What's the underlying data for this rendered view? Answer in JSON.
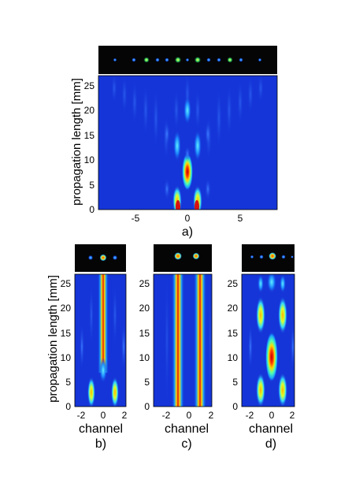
{
  "figure": {
    "ylabel": "propagation length [mm]",
    "xlabel_channel": "channel",
    "panels": [
      {
        "id": "a",
        "label": "a)"
      },
      {
        "id": "b",
        "label": "b)"
      },
      {
        "id": "c",
        "label": "c)"
      },
      {
        "id": "d",
        "label": "d)"
      }
    ]
  },
  "chart_data": [
    {
      "type": "heatmap",
      "panel": "a)",
      "xlabel": "",
      "ylabel": "propagation length [mm]",
      "xlim": [
        -8.5,
        8.5
      ],
      "ylim": [
        0,
        27
      ],
      "xticks": [
        -5,
        0,
        5
      ],
      "yticks": [
        0,
        5,
        10,
        15,
        20,
        25
      ],
      "colormap": "jet",
      "inset": "camera image of output spots",
      "peaks": [
        {
          "x": 0,
          "y": 7,
          "intensity": 1.0
        },
        {
          "x": -1,
          "y": 2,
          "intensity": 0.85
        },
        {
          "x": 1,
          "y": 2,
          "intensity": 0.85
        },
        {
          "x": -1,
          "y": 13,
          "intensity": 0.55
        },
        {
          "x": 1,
          "y": 13,
          "intensity": 0.55
        },
        {
          "x": 0,
          "y": 19,
          "intensity": 0.5
        },
        {
          "x": -2,
          "y": 17,
          "intensity": 0.4
        },
        {
          "x": 2,
          "y": 17,
          "intensity": 0.4
        }
      ]
    },
    {
      "type": "heatmap",
      "panel": "b)",
      "xlabel": "channel",
      "ylabel": "propagation length [mm]",
      "xlim": [
        -2.5,
        2.5
      ],
      "ylim": [
        0,
        27
      ],
      "xticks": [
        -2,
        0,
        2
      ],
      "yticks": [
        0,
        5,
        10,
        15,
        20,
        25
      ],
      "colormap": "jet",
      "peaks": [
        {
          "x": 0,
          "y": 18,
          "intensity": 1.0
        },
        {
          "x": -1,
          "y": 2.5,
          "intensity": 0.6
        },
        {
          "x": 1,
          "y": 2.5,
          "intensity": 0.6
        }
      ]
    },
    {
      "type": "heatmap",
      "panel": "c)",
      "xlabel": "channel",
      "ylabel": "",
      "xlim": [
        -2.5,
        2.5
      ],
      "ylim": [
        0,
        27
      ],
      "xticks": [
        -2,
        0,
        2
      ],
      "yticks": [
        0,
        5,
        10,
        15,
        20,
        25
      ],
      "colormap": "jet",
      "peaks": [
        {
          "x": -1,
          "y": 13,
          "intensity": 0.9
        },
        {
          "x": 1,
          "y": 13,
          "intensity": 0.9
        }
      ]
    },
    {
      "type": "heatmap",
      "panel": "d)",
      "xlabel": "channel",
      "ylabel": "",
      "xlim": [
        -2.5,
        2.5
      ],
      "ylim": [
        0,
        27
      ],
      "xticks": [
        -2,
        0,
        2
      ],
      "yticks": [
        0,
        5,
        10,
        15,
        20,
        25
      ],
      "colormap": "jet",
      "peaks": [
        {
          "x": 0,
          "y": 10,
          "intensity": 1.0
        },
        {
          "x": -1,
          "y": 2.5,
          "intensity": 0.6
        },
        {
          "x": 1,
          "y": 2.5,
          "intensity": 0.6
        },
        {
          "x": -1,
          "y": 18,
          "intensity": 0.5
        },
        {
          "x": 1,
          "y": 18,
          "intensity": 0.5
        },
        {
          "x": 0,
          "y": 25,
          "intensity": 0.45
        }
      ]
    }
  ]
}
